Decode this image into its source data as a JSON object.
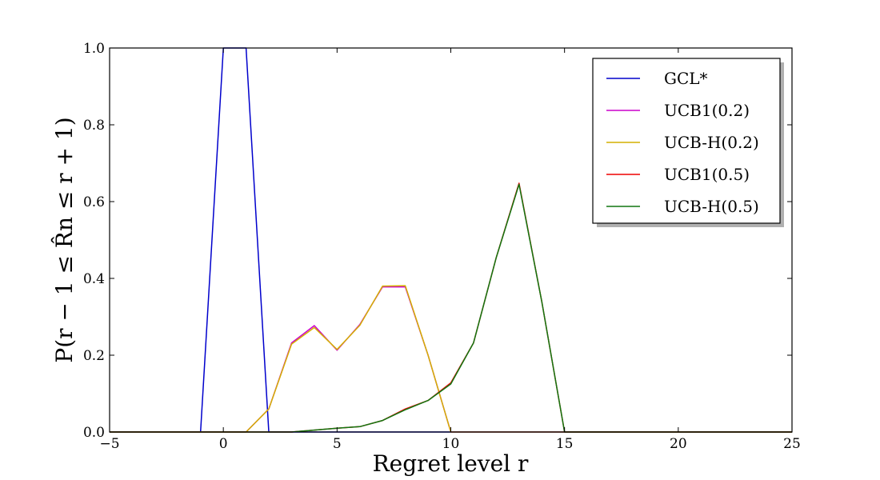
{
  "chart_data": {
    "type": "line",
    "xlabel": "Regret level r",
    "ylabel": "P(r − 1 ≤ R̂n ≤ r + 1)",
    "xlim": [
      -5,
      25
    ],
    "ylim": [
      0,
      1
    ],
    "xticks": [
      -5,
      0,
      5,
      10,
      15,
      20,
      25
    ],
    "yticks": [
      0.0,
      0.2,
      0.4,
      0.6,
      0.8,
      1.0
    ],
    "xtick_labels": [
      "−5",
      "0",
      "5",
      "10",
      "15",
      "20",
      "25"
    ],
    "ytick_labels": [
      "0.0",
      "0.2",
      "0.4",
      "0.6",
      "0.8",
      "1.0"
    ],
    "grid": false,
    "legend_position": "top-right",
    "series": [
      {
        "name": "GCL*",
        "color": "#0000cc",
        "x": [
          -5,
          -4,
          -3,
          -2,
          -1,
          0,
          1,
          2,
          3,
          4,
          5,
          6,
          7,
          8,
          9,
          10,
          11,
          12,
          13,
          14,
          15,
          16,
          17,
          18,
          19,
          20,
          21,
          22,
          23,
          24,
          25
        ],
        "y": [
          0,
          0,
          0,
          0,
          0,
          1,
          1,
          0,
          0,
          0,
          0,
          0,
          0,
          0,
          0,
          0,
          0,
          0,
          0,
          0,
          0,
          0,
          0,
          0,
          0,
          0,
          0,
          0,
          0,
          0,
          0
        ]
      },
      {
        "name": "UCB1(0.2)",
        "color": "#cc00cc",
        "x": [
          -5,
          -4,
          -3,
          -2,
          -1,
          0,
          1,
          2,
          3,
          4,
          5,
          6,
          7,
          8,
          9,
          10,
          11,
          12,
          13,
          14,
          15,
          16,
          17,
          18,
          19,
          20,
          21,
          22,
          23,
          24,
          25
        ],
        "y": [
          0,
          0,
          0,
          0,
          0,
          0,
          0,
          0.06,
          0.232,
          0.277,
          0.213,
          0.28,
          0.378,
          0.378,
          0.2,
          0,
          0,
          0,
          0,
          0,
          0,
          0,
          0,
          0,
          0,
          0,
          0,
          0,
          0,
          0,
          0
        ]
      },
      {
        "name": "UCB-H(0.2)",
        "color": "#d4b000",
        "x": [
          -5,
          -4,
          -3,
          -2,
          -1,
          0,
          1,
          2,
          3,
          4,
          5,
          6,
          7,
          8,
          9,
          10,
          11,
          12,
          13,
          14,
          15,
          16,
          17,
          18,
          19,
          20,
          21,
          22,
          23,
          24,
          25
        ],
        "y": [
          0,
          0,
          0,
          0,
          0,
          0,
          0,
          0.06,
          0.229,
          0.272,
          0.215,
          0.278,
          0.38,
          0.381,
          0.2,
          0,
          0,
          0,
          0,
          0,
          0,
          0,
          0,
          0,
          0,
          0,
          0,
          0,
          0,
          0,
          0
        ]
      },
      {
        "name": "UCB1(0.5)",
        "color": "#ee0000",
        "x": [
          -5,
          -4,
          -3,
          -2,
          -1,
          0,
          1,
          2,
          3,
          4,
          5,
          6,
          7,
          8,
          9,
          10,
          11,
          12,
          13,
          14,
          15,
          16,
          17,
          18,
          19,
          20,
          21,
          22,
          23,
          24,
          25
        ],
        "y": [
          0,
          0,
          0,
          0,
          0,
          0,
          0,
          0,
          0,
          0.005,
          0.01,
          0.014,
          0.03,
          0.06,
          0.082,
          0.128,
          0.232,
          0.455,
          0.648,
          0.34,
          0,
          0,
          0,
          0,
          0,
          0,
          0,
          0,
          0,
          0,
          0
        ]
      },
      {
        "name": "UCB-H(0.5)",
        "color": "#117711",
        "x": [
          -5,
          -4,
          -3,
          -2,
          -1,
          0,
          1,
          2,
          3,
          4,
          5,
          6,
          7,
          8,
          9,
          10,
          11,
          12,
          13,
          14,
          15,
          16,
          17,
          18,
          19,
          20,
          21,
          22,
          23,
          24,
          25
        ],
        "y": [
          0,
          0,
          0,
          0,
          0,
          0,
          0,
          0,
          0,
          0.005,
          0.01,
          0.014,
          0.03,
          0.058,
          0.082,
          0.125,
          0.232,
          0.455,
          0.645,
          0.34,
          0,
          0,
          0,
          0,
          0,
          0,
          0,
          0,
          0,
          0,
          0
        ]
      }
    ]
  }
}
